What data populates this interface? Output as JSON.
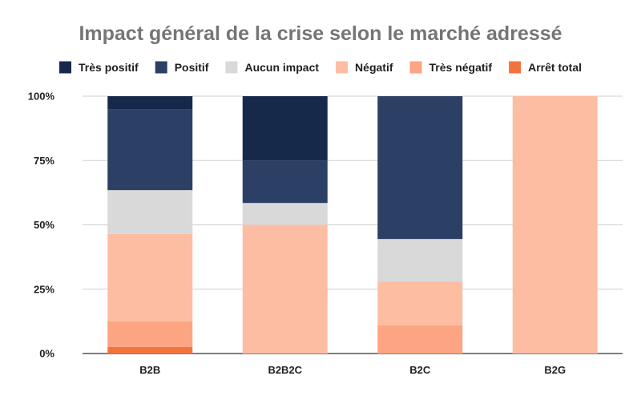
{
  "chart_data": {
    "type": "bar",
    "stacked": true,
    "orientation": "vertical",
    "title": "Impact général de la crise selon le marché adressé",
    "xlabel": "",
    "ylabel": "",
    "categories": [
      "B2B",
      "B2B2C",
      "B2C",
      "B2G"
    ],
    "ylim": [
      0,
      100
    ],
    "yticks": [
      0,
      25,
      50,
      75,
      100
    ],
    "ytick_labels": [
      "0%",
      "25%",
      "50%",
      "75%",
      "100%"
    ],
    "grid": true,
    "legend": "top",
    "series": [
      {
        "name": "Arrêt total",
        "color": "#f4733d",
        "values": [
          2.5,
          0,
          0,
          0
        ]
      },
      {
        "name": "Très négatif",
        "color": "#fda482",
        "values": [
          10,
          0,
          11,
          0
        ]
      },
      {
        "name": "Négatif",
        "color": "#fdbda2",
        "values": [
          34,
          50,
          17,
          100
        ]
      },
      {
        "name": "Aucun impact",
        "color": "#d9d9d9",
        "values": [
          17,
          8.5,
          16.5,
          0
        ]
      },
      {
        "name": "Positif",
        "color": "#2c3f65",
        "values": [
          31.5,
          16.5,
          55.5,
          0
        ]
      },
      {
        "name": "Très positif",
        "color": "#17294b",
        "values": [
          5,
          25,
          0,
          0
        ]
      }
    ],
    "legend_order": [
      "Très positif",
      "Positif",
      "Aucun impact",
      "Négatif",
      "Très négatif",
      "Arrêt total"
    ]
  }
}
